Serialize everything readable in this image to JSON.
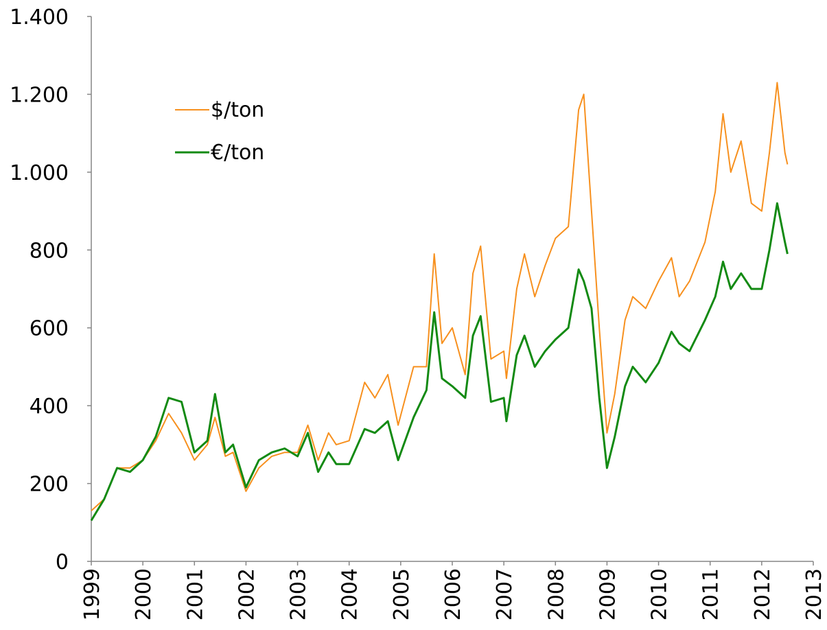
{
  "chart_data": {
    "type": "line",
    "x": [
      1999.0,
      1999.25,
      1999.5,
      1999.75,
      2000.0,
      2000.25,
      2000.5,
      2000.75,
      2001.0,
      2001.25,
      2001.4,
      2001.6,
      2001.75,
      2002.0,
      2002.25,
      2002.5,
      2002.75,
      2003.0,
      2003.2,
      2003.4,
      2003.6,
      2003.75,
      2004.0,
      2004.3,
      2004.5,
      2004.75,
      2004.95,
      2005.25,
      2005.5,
      2005.65,
      2005.8,
      2006.0,
      2006.25,
      2006.4,
      2006.55,
      2006.75,
      2007.0,
      2007.05,
      2007.25,
      2007.4,
      2007.6,
      2007.8,
      2008.0,
      2008.25,
      2008.45,
      2008.55,
      2008.7,
      2008.85,
      2009.0,
      2009.15,
      2009.35,
      2009.5,
      2009.75,
      2010.0,
      2010.25,
      2010.4,
      2010.6,
      2010.9,
      2011.1,
      2011.25,
      2011.4,
      2011.6,
      2011.8,
      2012.0,
      2012.15,
      2012.3,
      2012.45,
      2012.5
    ],
    "series": [
      {
        "name": "$/ton",
        "color": "#f7901e",
        "values": [
          130,
          160,
          240,
          240,
          260,
          310,
          380,
          330,
          260,
          300,
          370,
          270,
          280,
          180,
          240,
          270,
          280,
          280,
          350,
          260,
          330,
          300,
          310,
          460,
          420,
          480,
          350,
          500,
          500,
          790,
          560,
          600,
          480,
          740,
          810,
          520,
          540,
          470,
          700,
          790,
          680,
          760,
          830,
          860,
          1160,
          1200,
          900,
          600,
          330,
          430,
          620,
          680,
          650,
          720,
          780,
          680,
          720,
          820,
          950,
          1150,
          1000,
          1080,
          920,
          900,
          1050,
          1230,
          1050,
          1020
        ]
      },
      {
        "name": "€/ton",
        "color": "#138a13",
        "values": [
          105,
          160,
          240,
          230,
          260,
          320,
          420,
          410,
          280,
          310,
          430,
          280,
          300,
          190,
          260,
          280,
          290,
          270,
          330,
          230,
          280,
          250,
          250,
          340,
          330,
          360,
          260,
          370,
          440,
          640,
          470,
          450,
          420,
          580,
          630,
          410,
          420,
          360,
          530,
          580,
          500,
          540,
          570,
          600,
          750,
          720,
          650,
          420,
          240,
          320,
          450,
          500,
          460,
          510,
          590,
          560,
          540,
          620,
          680,
          770,
          700,
          740,
          700,
          700,
          800,
          920,
          820,
          790
        ]
      }
    ],
    "xlim": [
      1999,
      2013
    ],
    "xticks": [
      1999,
      2000,
      2001,
      2002,
      2003,
      2004,
      2005,
      2006,
      2007,
      2008,
      2009,
      2010,
      2011,
      2012,
      2013
    ],
    "ylim": [
      0,
      1400
    ],
    "yticks": [
      0,
      200,
      400,
      600,
      800,
      {
        "value": 1000,
        "label": "1.000"
      },
      {
        "value": 1200,
        "label": "1.200"
      },
      {
        "value": 1400,
        "label": "1.400"
      }
    ],
    "grid": false,
    "legend": "upper left"
  }
}
